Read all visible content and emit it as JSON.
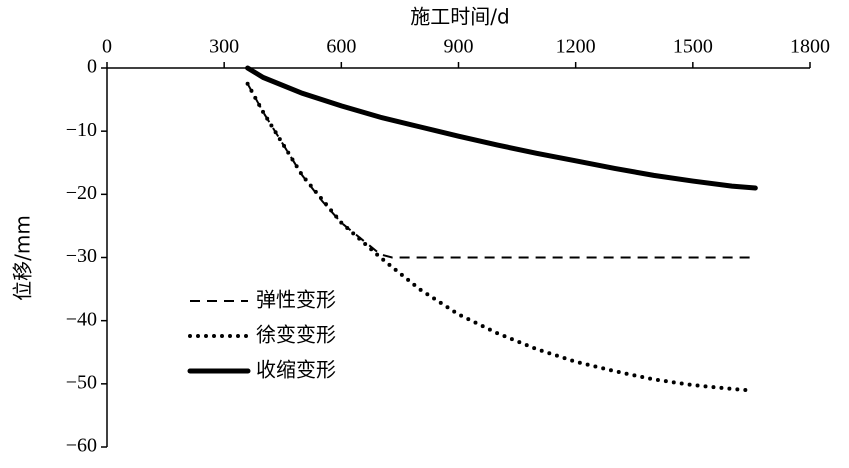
{
  "chart_data": {
    "type": "line",
    "x_label": "施工时间/d",
    "y_label": "位移/mm",
    "xlim": [
      0,
      1800
    ],
    "xticks": [
      0,
      300,
      600,
      900,
      1200,
      1500,
      1800
    ],
    "ylim": [
      -60,
      0
    ],
    "yticks": [
      {
        "value": -60,
        "label": "−60"
      },
      {
        "value": -50,
        "label": "−50"
      },
      {
        "value": -40,
        "label": "−40"
      },
      {
        "value": -30,
        "label": "−30"
      },
      {
        "value": -20,
        "label": "−20"
      },
      {
        "value": -10,
        "label": "−10"
      },
      0
    ],
    "legend": "lower left",
    "series": [
      {
        "name": "弹性变形",
        "color": "#000000",
        "style": "dashed",
        "x": [
          360,
          400,
          450,
          500,
          550,
          600,
          650,
          700,
          730,
          1650
        ],
        "values": [
          -2.5,
          -7,
          -12,
          -17,
          -21,
          -24.5,
          -27,
          -29.5,
          -30,
          -30
        ]
      },
      {
        "name": "徐变变形",
        "color": "#000000",
        "style": "dotted",
        "x": [
          360,
          400,
          500,
          600,
          700,
          800,
          900,
          1000,
          1100,
          1200,
          1300,
          1400,
          1500,
          1600,
          1640
        ],
        "values": [
          -2.5,
          -7,
          -17,
          -24.5,
          -30,
          -35,
          -39,
          -42,
          -44.5,
          -46.5,
          -48,
          -49.3,
          -50.2,
          -50.8,
          -51
        ]
      },
      {
        "name": "收缩变形",
        "color": "#000000",
        "style": "solid",
        "x": [
          360,
          400,
          500,
          600,
          700,
          800,
          900,
          1000,
          1100,
          1200,
          1300,
          1400,
          1500,
          1600,
          1660
        ],
        "values": [
          0,
          -1.5,
          -4,
          -6,
          -7.8,
          -9.3,
          -10.8,
          -12.2,
          -13.5,
          -14.7,
          -15.9,
          -17,
          -17.9,
          -18.7,
          -19
        ]
      }
    ]
  }
}
